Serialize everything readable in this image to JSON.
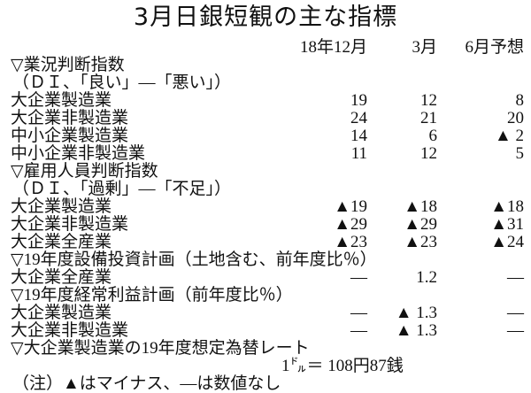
{
  "title": "3月日銀短観の主な指標",
  "headers": [
    "18年12月",
    "3月",
    "6月予想"
  ],
  "rows": [
    {
      "label": "▽業況判断指数",
      "values": [
        "",
        "",
        ""
      ]
    },
    {
      "label": "（ＤＩ、「良い」―「悪い」）",
      "values": [
        "",
        "",
        ""
      ]
    },
    {
      "label": "大企業製造業",
      "values": [
        "19",
        "12",
        "8"
      ]
    },
    {
      "label": "大企業非製造業",
      "values": [
        "24",
        "21",
        "20"
      ]
    },
    {
      "label": "中小企業製造業",
      "values": [
        "14",
        "6",
        "▲ 2"
      ]
    },
    {
      "label": "中小企業非製造業",
      "values": [
        "11",
        "12",
        "5"
      ]
    },
    {
      "label": "▽雇用人員判断指数",
      "values": [
        "",
        "",
        ""
      ]
    },
    {
      "label": "（ＤＩ、「過剰」―「不足」）",
      "values": [
        "",
        "",
        ""
      ]
    },
    {
      "label": "大企業製造業",
      "values": [
        "▲19",
        "▲18",
        "▲18"
      ]
    },
    {
      "label": "大企業非製造業",
      "values": [
        "▲29",
        "▲29",
        "▲31"
      ]
    },
    {
      "label": "大企業全産業",
      "values": [
        "▲23",
        "▲23",
        "▲24"
      ]
    },
    {
      "label": "▽19年度設備投資計画（土地含む、前年度比％）",
      "values": [
        "",
        "",
        ""
      ]
    },
    {
      "label": "大企業全産業",
      "values": [
        "―",
        "1.2",
        "―"
      ]
    },
    {
      "label": "▽19年度経常利益計画（前年度比％）",
      "values": [
        "",
        "",
        ""
      ]
    },
    {
      "label": "大企業製造業",
      "values": [
        "―",
        "▲ 1.3",
        "―"
      ]
    },
    {
      "label": "大企業非製造業",
      "values": [
        "―",
        "▲ 1.3",
        "―"
      ]
    },
    {
      "label": "▽大企業製造業の19年度想定為替レート",
      "values": [
        "",
        "",
        ""
      ]
    }
  ],
  "exchange_rate": "1㌦＝ 108円87銭",
  "note": "（注）▲はマイナス、―は数値なし"
}
